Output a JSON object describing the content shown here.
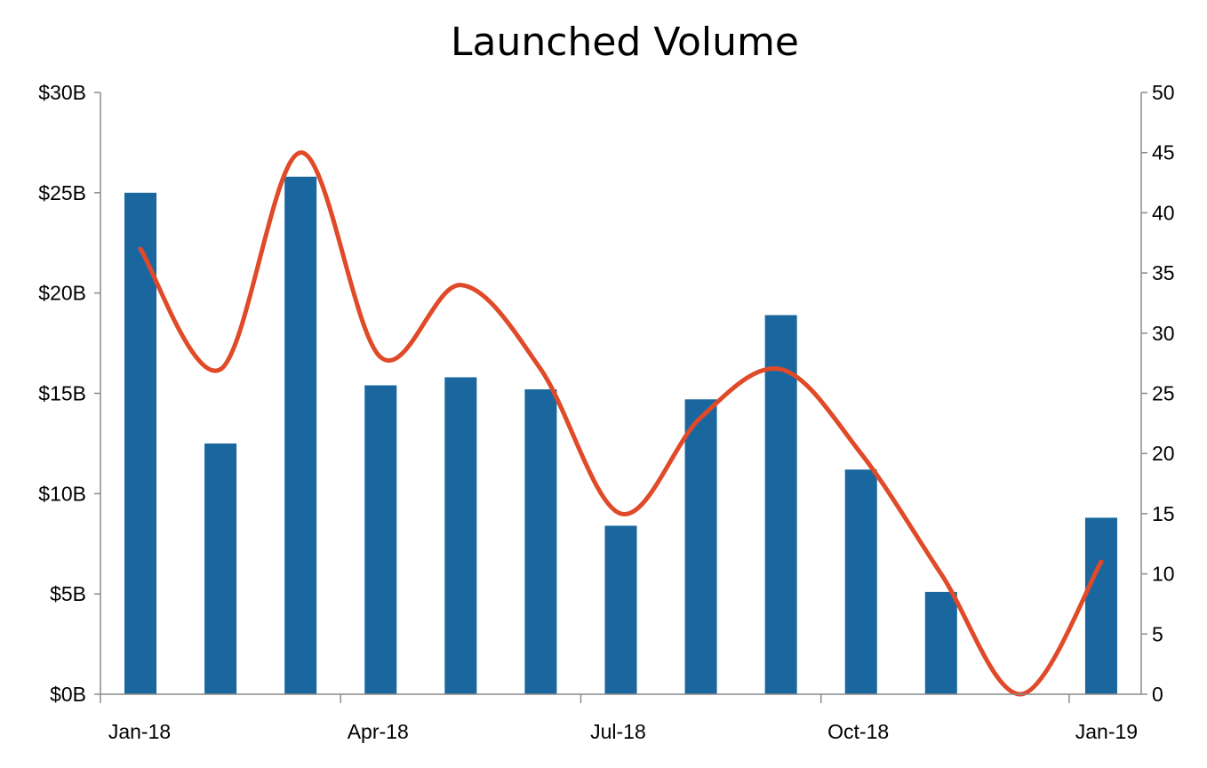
{
  "chart_data": {
    "type": "bar",
    "title": "Launched Volume",
    "xlabel": "",
    "ylabel": "",
    "x": [
      "2018-01",
      "2018-02",
      "2018-03",
      "2018-04",
      "2018-05",
      "2018-06",
      "2018-07",
      "2018-08",
      "2018-09",
      "2018-10",
      "2018-11",
      "2018-12",
      "2019-01"
    ],
    "x_tick_labels": [
      "Jan-18",
      "Apr-18",
      "Jul-18",
      "Oct-18",
      "Jan-19"
    ],
    "series": [
      {
        "kind": "bar",
        "axis": "left",
        "color": "#1a67a0",
        "values": [
          25.0,
          12.5,
          25.8,
          15.4,
          15.8,
          15.2,
          8.4,
          14.7,
          18.9,
          11.2,
          5.1,
          null,
          8.8
        ]
      },
      {
        "kind": "line",
        "axis": "right",
        "color": "#e04a28",
        "smooth": true,
        "values": [
          37,
          27,
          45,
          28,
          34,
          27,
          15,
          23,
          27,
          20,
          10,
          0,
          11
        ]
      }
    ],
    "y_left": {
      "ylim": [
        0,
        30
      ],
      "ticks": [
        0,
        5,
        10,
        15,
        20,
        25,
        30
      ],
      "tick_labels": [
        "$0B",
        "$5B",
        "$10B",
        "$15B",
        "$20B",
        "$25B",
        "$30B"
      ]
    },
    "y_right": {
      "ylim": [
        0,
        50
      ],
      "ticks": [
        0,
        5,
        10,
        15,
        20,
        25,
        30,
        35,
        40,
        45,
        50
      ],
      "tick_labels": [
        "0",
        "5",
        "10",
        "15",
        "20",
        "25",
        "30",
        "35",
        "40",
        "45",
        "50"
      ]
    },
    "grid": false,
    "legend": "none"
  }
}
